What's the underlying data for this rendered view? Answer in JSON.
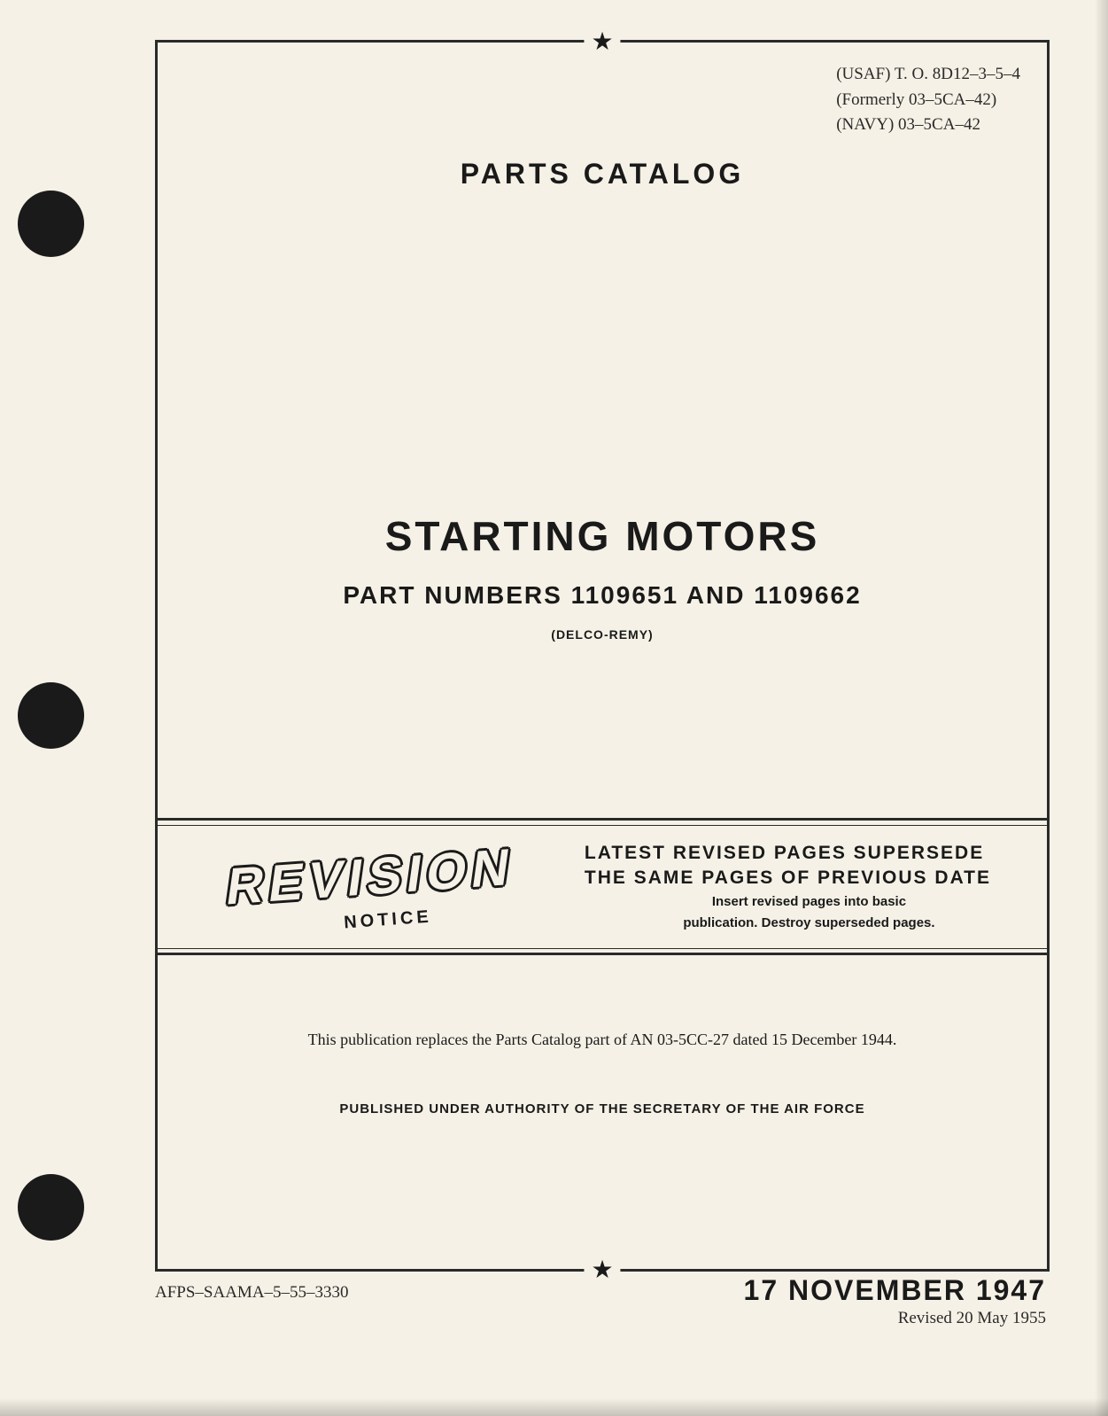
{
  "document_ids": {
    "usaf": "(USAF) T. O.  8D12–3–5–4",
    "formerly": "(Formerly 03–5CA–42)",
    "navy": "(NAVY) 03–5CA–42"
  },
  "header": {
    "catalog_title": "PARTS CATALOG"
  },
  "main": {
    "title": "STARTING MOTORS",
    "part_numbers": "PART NUMBERS 1109651 AND 1109662",
    "manufacturer": "(DELCO-REMY)"
  },
  "revision": {
    "stylized": "REVISION",
    "notice": "NOTICE",
    "line1": "LATEST REVISED PAGES SUPERSEDE",
    "line2": "THE SAME PAGES OF PREVIOUS DATE",
    "sub1": "Insert revised pages into basic",
    "sub2": "publication. Destroy superseded pages."
  },
  "notes": {
    "replaces": "This publication replaces the Parts Catalog part of AN 03-5CC-27 dated 15 December 1944.",
    "authority": "PUBLISHED UNDER AUTHORITY OF THE SECRETARY OF THE AIR FORCE"
  },
  "footer": {
    "left": "AFPS–SAAMA–5–55–3330",
    "date": "17 NOVEMBER 1947",
    "revised": "Revised 20 May 1955"
  },
  "colors": {
    "page_bg": "#f5f1e6",
    "text": "#1a1a1a",
    "hole": "#1a1a1a",
    "border": "#2a2a2a"
  }
}
